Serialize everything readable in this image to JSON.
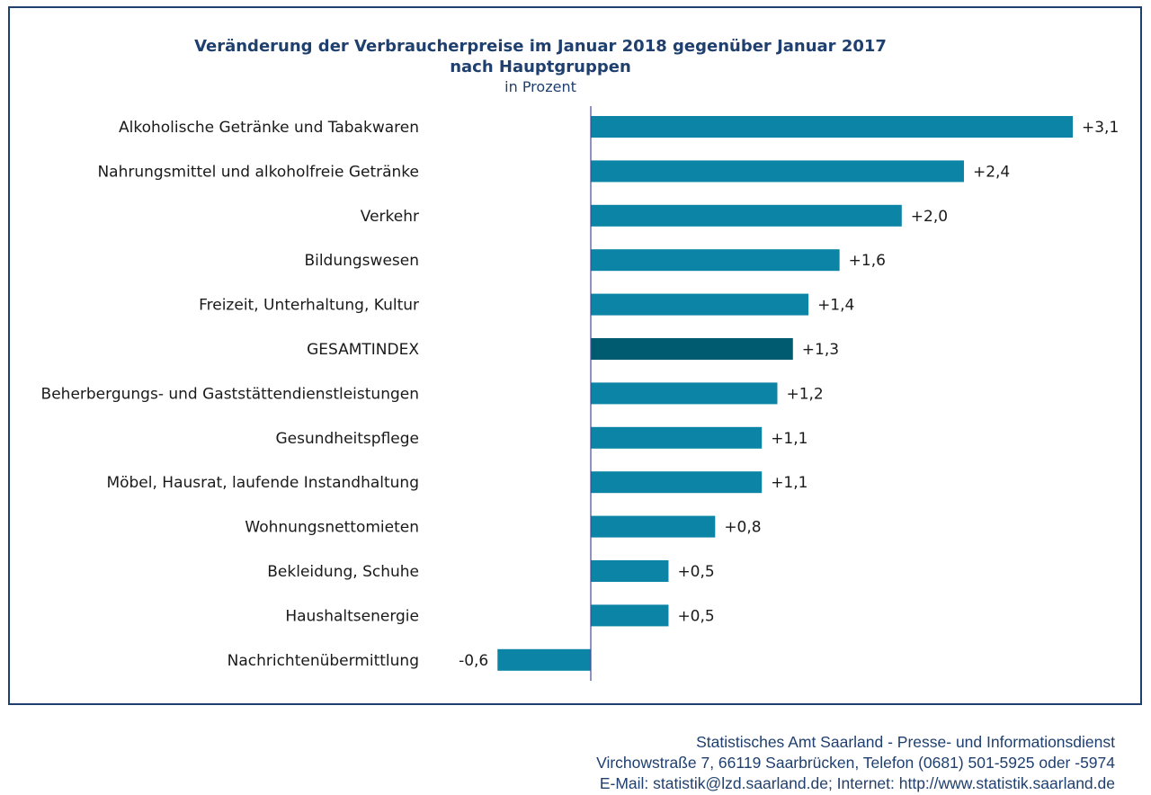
{
  "chart_data": {
    "type": "bar",
    "orientation": "horizontal",
    "title": "Veränderung der Verbraucherpreise im Januar 2018 gegenüber Januar 2017",
    "title_line2": "nach Hauptgruppen",
    "subtitle": "in Prozent",
    "categories": [
      "Alkoholische Getränke und Tabakwaren",
      "Nahrungsmittel und alkoholfreie Getränke",
      "Verkehr",
      "Bildungswesen",
      "Freizeit, Unterhaltung, Kultur",
      "GESAMTINDEX",
      "Beherbergungs- und Gaststättendienstleistungen",
      "Gesundheitspflege",
      "Möbel, Hausrat, laufende Instandhaltung",
      "Wohnungsnettomieten",
      "Bekleidung, Schuhe",
      "Haushaltsenergie",
      "Nachrichtenübermittlung"
    ],
    "values": [
      3.1,
      2.4,
      2.0,
      1.6,
      1.4,
      1.3,
      1.2,
      1.1,
      1.1,
      0.8,
      0.5,
      0.5,
      -0.6
    ],
    "value_labels": [
      "+3,1",
      "+2,4",
      "+2,0",
      "+1,6",
      "+1,4",
      "+1,3",
      "+1,2",
      "+1,1",
      "+1,1",
      "+0,8",
      "+0,5",
      "+0,5",
      "-0,6"
    ],
    "highlight_category": "GESAMTINDEX",
    "xlim": [
      -0.6,
      3.1
    ],
    "grid": false,
    "legend": "none",
    "colors": {
      "bar": "#0b84a5",
      "highlight": "#005b70",
      "title": "#1f3f6e",
      "axis": "#4a4a9a"
    }
  },
  "footer": {
    "line1": "Statistisches Amt Saarland - Presse- und Informationsdienst",
    "line2": "Virchowstraße 7, 66119 Saarbrücken, Telefon (0681) 501-5925 oder -5974",
    "line3": "E-Mail: statistik@lzd.saarland.de; Internet: http://www.statistik.saarland.de"
  }
}
